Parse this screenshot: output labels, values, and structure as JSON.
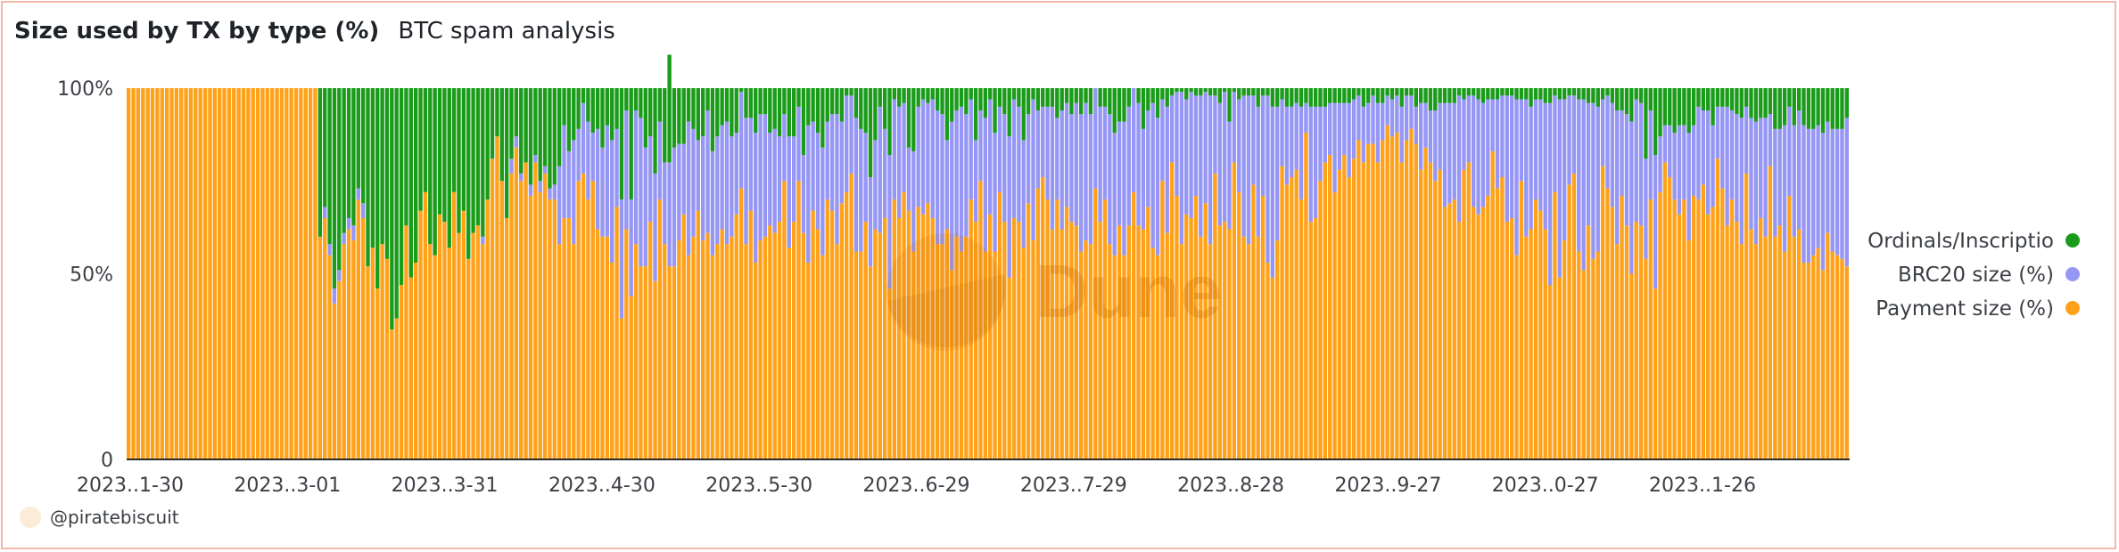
{
  "header": {
    "title": "Size used by TX by type (%)",
    "subtitle": "BTC spam analysis"
  },
  "watermark": "Dune",
  "author": "@piratebiscuit",
  "colors": {
    "ordinals": "#1a9c1a",
    "brc20": "#9696f5",
    "payment": "#ffa21a",
    "axis_text": "#3b3f44",
    "watermark": "#c96a00"
  },
  "chart_data": {
    "type": "bar",
    "stacked": true,
    "title": "Size used by TX by type (%)",
    "subtitle": "BTC spam analysis",
    "x_tick_labels": [
      "2023..1-30",
      "2023..3-01",
      "2023..3-31",
      "2023..4-30",
      "2023..5-30",
      "2023..6-29",
      "2023..7-29",
      "2023..8-28",
      "2023..9-27",
      "2023..0-27",
      "2023..1-26"
    ],
    "y_tick_labels": [
      "100%",
      "50%",
      "0"
    ],
    "ylim": [
      0,
      100
    ],
    "legend_position": "right",
    "legend": [
      "Ordinals/Inscriptio",
      "BRC20 size (%)",
      "Payment size (%)"
    ],
    "series": [
      {
        "name": "Payment size (%)",
        "color": "#ffa21a",
        "values": [
          100,
          100,
          100,
          100,
          100,
          100,
          100,
          100,
          100,
          100,
          100,
          100,
          100,
          100,
          100,
          100,
          100,
          100,
          100,
          100,
          100,
          100,
          100,
          100,
          100,
          100,
          100,
          100,
          100,
          100,
          100,
          100,
          100,
          100,
          100,
          100,
          100,
          100,
          100,
          100,
          60,
          65,
          55,
          42,
          48,
          58,
          62,
          59,
          70,
          65,
          52,
          57,
          46,
          58,
          54,
          35,
          38,
          47,
          63,
          49,
          53,
          67,
          72,
          58,
          55,
          66,
          64,
          57,
          72,
          61,
          67,
          54,
          61,
          63,
          58,
          70,
          81,
          87,
          75,
          65,
          77,
          84,
          75,
          80,
          71,
          80,
          72,
          77,
          70,
          70,
          58,
          65,
          65,
          58,
          75,
          77,
          70,
          75,
          62,
          60,
          60,
          53,
          68,
          38,
          62,
          44,
          58,
          52,
          52,
          64,
          48,
          70,
          58,
          52,
          52,
          59,
          66,
          55,
          60,
          67,
          59,
          61,
          55,
          58,
          62,
          58,
          60,
          66,
          73,
          58,
          67,
          53,
          59,
          60,
          63,
          61,
          64,
          75,
          57,
          64,
          75,
          61,
          53,
          67,
          62,
          55,
          70,
          67,
          58,
          69,
          72,
          77,
          56,
          56,
          64,
          52,
          62,
          61,
          65,
          46,
          70,
          65,
          72,
          67,
          56,
          68,
          66,
          69,
          65,
          58,
          58,
          62,
          51,
          60,
          56,
          60,
          70,
          64,
          75,
          56,
          66,
          56,
          72,
          64,
          49,
          65,
          64,
          57,
          69,
          59,
          73,
          76,
          70,
          62,
          70,
          62,
          68,
          64,
          63,
          56,
          59,
          58,
          73,
          64,
          70,
          58,
          55,
          63,
          55,
          63,
          72,
          63,
          62,
          68,
          57,
          55,
          75,
          61,
          80,
          71,
          58,
          66,
          65,
          71,
          60,
          69,
          58,
          77,
          63,
          64,
          62,
          80,
          72,
          60,
          58,
          74,
          60,
          71,
          53,
          49,
          59,
          79,
          74,
          76,
          78,
          70,
          88,
          64,
          65,
          75,
          80,
          82,
          72,
          78,
          82,
          76,
          81,
          86,
          80,
          85,
          85,
          80,
          86,
          90,
          87,
          88,
          80,
          86,
          89,
          85,
          78,
          84,
          80,
          75,
          78,
          68,
          69,
          70,
          64,
          78,
          80,
          68,
          66,
          68,
          71,
          83,
          73,
          76,
          64,
          65,
          55,
          75,
          60,
          62,
          70,
          67,
          62,
          47,
          72,
          49,
          59,
          74,
          77,
          56,
          51,
          63,
          54,
          56,
          79,
          73,
          68,
          58,
          71,
          63,
          50,
          64,
          63,
          54,
          70,
          46,
          72,
          80,
          76,
          70,
          66,
          70,
          59,
          71,
          70,
          74,
          66,
          68,
          81,
          73,
          63,
          70,
          64,
          58,
          77,
          62,
          58,
          65,
          60,
          79,
          60,
          63,
          56,
          71,
          60,
          62,
          53,
          53,
          55,
          57,
          51,
          61,
          56,
          55,
          54,
          52
        ]
      },
      {
        "name": "BRC20 size (%)",
        "color": "#9696f5",
        "values": [
          0,
          0,
          0,
          0,
          0,
          0,
          0,
          0,
          0,
          0,
          0,
          0,
          0,
          0,
          0,
          0,
          0,
          0,
          0,
          0,
          0,
          0,
          0,
          0,
          0,
          0,
          0,
          0,
          0,
          0,
          0,
          0,
          0,
          0,
          0,
          0,
          0,
          0,
          0,
          0,
          0,
          3,
          3,
          4,
          3,
          3,
          3,
          4,
          3,
          4,
          0,
          0,
          0,
          0,
          0,
          0,
          0,
          0,
          0,
          0,
          0,
          0,
          0,
          0,
          0,
          0,
          0,
          0,
          0,
          0,
          0,
          0,
          0,
          0,
          2,
          0,
          0,
          0,
          0,
          0,
          4,
          3,
          2,
          0,
          3,
          2,
          3,
          2,
          3,
          4,
          21,
          25,
          18,
          28,
          14,
          19,
          21,
          13,
          27,
          24,
          30,
          33,
          21,
          32,
          32,
          26,
          36,
          40,
          32,
          23,
          29,
          21,
          22,
          28,
          32,
          26,
          19,
          36,
          29,
          19,
          28,
          33,
          28,
          29,
          28,
          33,
          27,
          22,
          26,
          34,
          25,
          35,
          34,
          33,
          25,
          28,
          23,
          18,
          30,
          23,
          20,
          21,
          37,
          24,
          26,
          29,
          21,
          26,
          35,
          22,
          26,
          21,
          36,
          33,
          24,
          24,
          24,
          34,
          24,
          36,
          27,
          30,
          24,
          17,
          27,
          27,
          31,
          27,
          32,
          36,
          35,
          24,
          40,
          34,
          39,
          33,
          27,
          22,
          19,
          36,
          31,
          32,
          23,
          29,
          38,
          32,
          31,
          29,
          24,
          38,
          21,
          19,
          25,
          33,
          22,
          32,
          28,
          29,
          33,
          37,
          37,
          35,
          27,
          31,
          25,
          35,
          33,
          28,
          36,
          32,
          28,
          33,
          27,
          26,
          39,
          37,
          22,
          34,
          18,
          28,
          41,
          31,
          34,
          27,
          38,
          30,
          40,
          21,
          33,
          35,
          29,
          19,
          25,
          38,
          40,
          24,
          35,
          27,
          45,
          46,
          36,
          18,
          21,
          19,
          18,
          25,
          8,
          31,
          30,
          20,
          15,
          14,
          24,
          18,
          14,
          20,
          16,
          12,
          15,
          11,
          13,
          16,
          10,
          8,
          10,
          10,
          15,
          12,
          9,
          10,
          18,
          12,
          14,
          19,
          18,
          28,
          27,
          26,
          34,
          19,
          18,
          30,
          31,
          28,
          26,
          14,
          24,
          22,
          34,
          33,
          42,
          22,
          37,
          33,
          27,
          30,
          34,
          49,
          26,
          48,
          38,
          24,
          21,
          41,
          46,
          33,
          42,
          39,
          18,
          25,
          28,
          36,
          23,
          30,
          41,
          33,
          33,
          27,
          24,
          36,
          15,
          10,
          14,
          18,
          24,
          20,
          29,
          19,
          25,
          20,
          28,
          22,
          14,
          22,
          32,
          24,
          29,
          34,
          18,
          30,
          33,
          27,
          32,
          14,
          29,
          26,
          34,
          24,
          30,
          32,
          37,
          36,
          34,
          33,
          37,
          30,
          33,
          34,
          35,
          40
        ]
      },
      {
        "name": "Ordinals/Inscriptio",
        "color": "#1a9c1a",
        "values": [
          0,
          0,
          0,
          0,
          0,
          0,
          0,
          0,
          0,
          0,
          0,
          0,
          0,
          0,
          0,
          0,
          0,
          0,
          0,
          0,
          0,
          0,
          0,
          0,
          0,
          0,
          0,
          0,
          0,
          0,
          0,
          0,
          0,
          0,
          0,
          0,
          0,
          0,
          0,
          0,
          40,
          32,
          42,
          54,
          49,
          39,
          35,
          37,
          27,
          31,
          48,
          43,
          54,
          42,
          46,
          65,
          62,
          53,
          37,
          51,
          47,
          33,
          28,
          42,
          45,
          34,
          36,
          43,
          28,
          39,
          33,
          46,
          39,
          37,
          40,
          30,
          19,
          13,
          25,
          35,
          19,
          13,
          23,
          20,
          26,
          18,
          25,
          21,
          27,
          26,
          21,
          10,
          17,
          14,
          11,
          4,
          9,
          12,
          11,
          16,
          10,
          14,
          11,
          30,
          6,
          30,
          6,
          8,
          16,
          13,
          23,
          9,
          20,
          29,
          16,
          15,
          15,
          9,
          11,
          14,
          13,
          6,
          17,
          13,
          10,
          9,
          13,
          12,
          1,
          8,
          8,
          12,
          7,
          7,
          12,
          11,
          13,
          7,
          13,
          13,
          5,
          18,
          10,
          9,
          12,
          16,
          9,
          7,
          7,
          9,
          2,
          2,
          8,
          11,
          12,
          24,
          14,
          5,
          11,
          18,
          3,
          5,
          4,
          16,
          17,
          5,
          3,
          4,
          3,
          6,
          7,
          14,
          9,
          6,
          5,
          7,
          3,
          14,
          6,
          8,
          3,
          12,
          5,
          7,
          13,
          3,
          5,
          14,
          7,
          3,
          6,
          5,
          5,
          5,
          8,
          6,
          4,
          7,
          4,
          7,
          4,
          7,
          0,
          5,
          5,
          7,
          12,
          9,
          9,
          5,
          0,
          4,
          11,
          6,
          4,
          8,
          3,
          5,
          2,
          1,
          1,
          3,
          1,
          2,
          2,
          1,
          2,
          2,
          4,
          1,
          9,
          1,
          3,
          2,
          2,
          2,
          5,
          2,
          2,
          5,
          5,
          3,
          5,
          5,
          4,
          5,
          4,
          5,
          5,
          5,
          5,
          4,
          4,
          4,
          4,
          4,
          3,
          2,
          5,
          4,
          2,
          4,
          4,
          2,
          3,
          2,
          5,
          2,
          2,
          5,
          4,
          4,
          6,
          6,
          4,
          4,
          4,
          4,
          2,
          3,
          2,
          2,
          3,
          4,
          3,
          3,
          3,
          2,
          2,
          2,
          3,
          3,
          3,
          5,
          3,
          3,
          4,
          4,
          2,
          3,
          3,
          2,
          2,
          3,
          3,
          4,
          4,
          5,
          3,
          2,
          4,
          6,
          6,
          7,
          9,
          3,
          4,
          19,
          6,
          18,
          13,
          10,
          10,
          12,
          10,
          10,
          12,
          10,
          5,
          6,
          6,
          10,
          5,
          5,
          5,
          6,
          7,
          8,
          5,
          8,
          9,
          8,
          8,
          7,
          11,
          11,
          10,
          5,
          10,
          6,
          10,
          11,
          11,
          10,
          12,
          9,
          11,
          11,
          11,
          8
        ]
      }
    ]
  }
}
